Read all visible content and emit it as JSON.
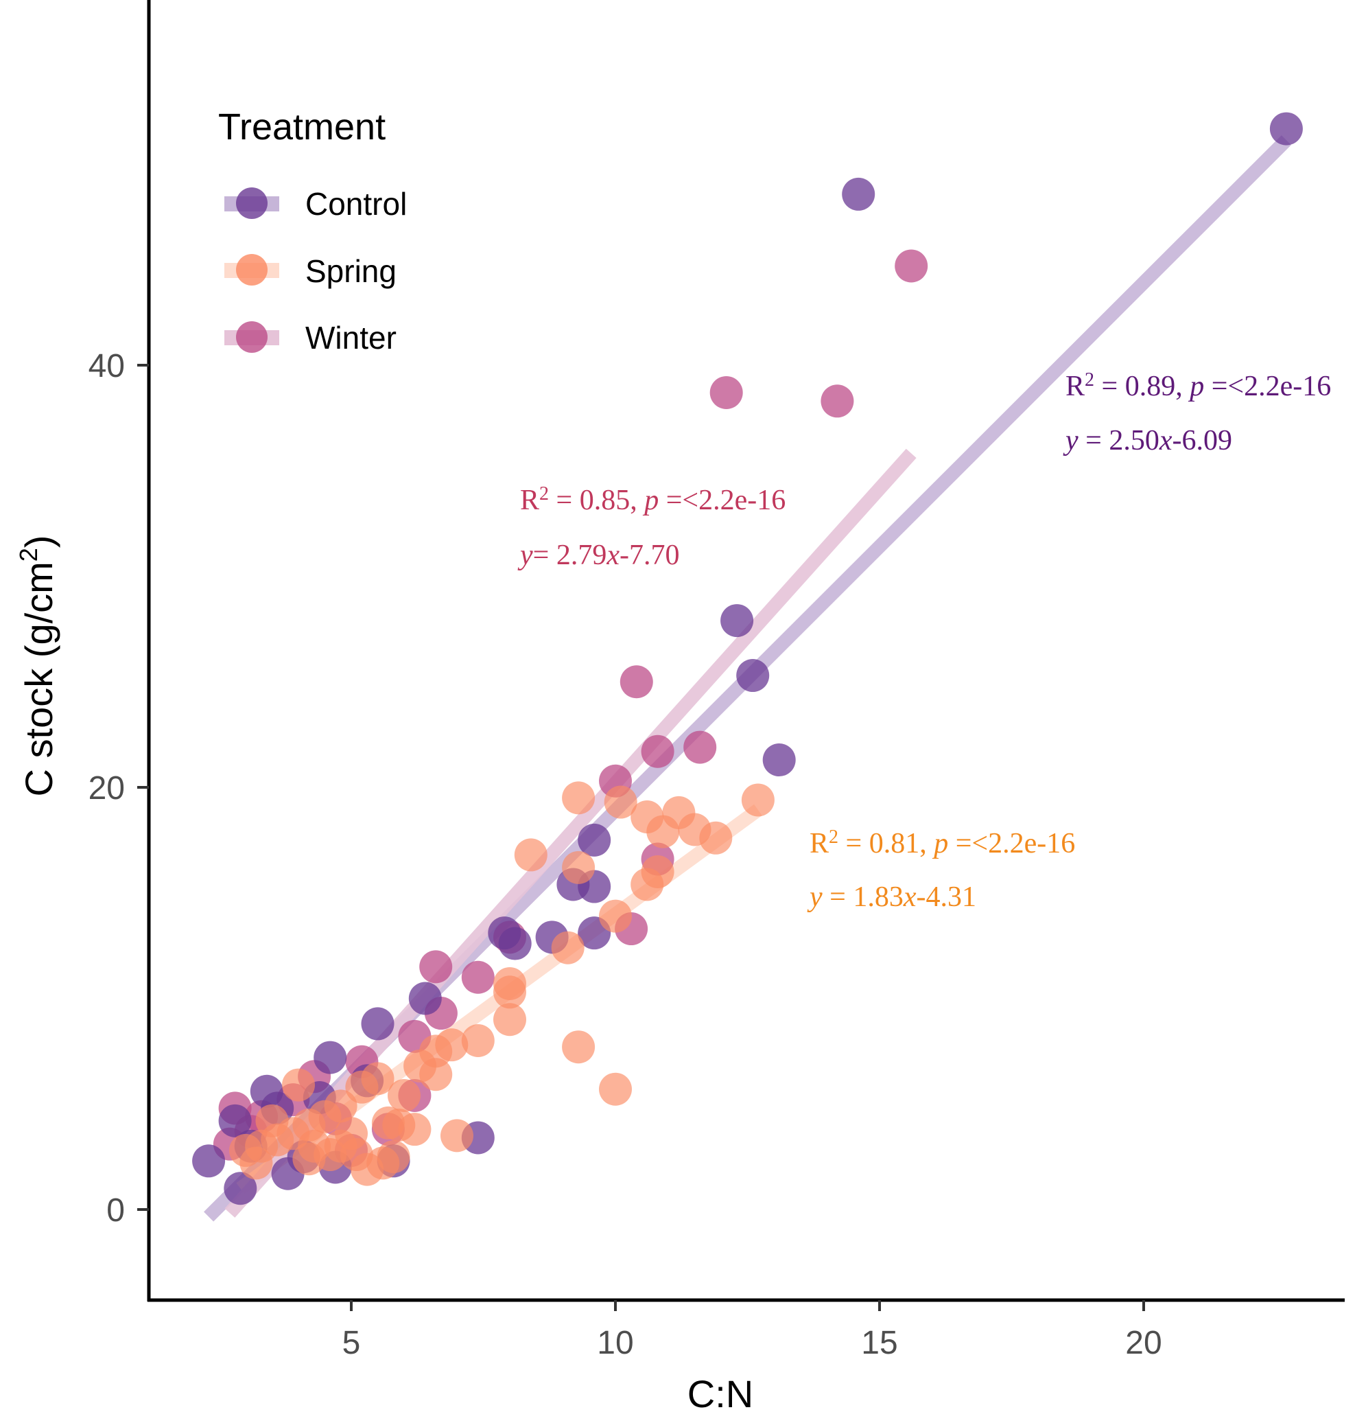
{
  "chart_data": {
    "type": "scatter",
    "title": "",
    "xlabel": "C:N",
    "ylabel": "C stock (g/cm",
    "ylabel_superscript": "2",
    "ylabel_suffix": ")",
    "xlim": [
      1.3,
      24.3
    ],
    "ylim": [
      -4.3,
      57.5
    ],
    "x_ticks": [
      5,
      10,
      15,
      20
    ],
    "y_ticks": [
      0,
      20,
      40
    ],
    "grid": false,
    "legend": {
      "title": "Treatment",
      "position": "top-left",
      "entries": [
        "Control",
        "Spring",
        "Winter"
      ]
    },
    "colors": {
      "Control": "#6a3a94",
      "Spring": "#fb8a62",
      "Winter": "#bd4e8a"
    },
    "series": [
      {
        "name": "Control",
        "fit": {
          "slope": 2.5,
          "intercept": -6.09,
          "x_range": [
            2.3,
            22.7
          ]
        },
        "annotation": {
          "r2_prefix": "R",
          "r2_sup": "2",
          "r2_text": " = 0.89, ",
          "p_label": "p",
          "p_text": " =<2.2e-16",
          "eq_y": "y",
          "eq_mid": " = 2.50",
          "eq_x": "x",
          "eq_tail": "-6.09",
          "color": "#5e1a78"
        },
        "points": [
          [
            22.7,
            51.2
          ],
          [
            14.6,
            48.1
          ],
          [
            12.3,
            27.9
          ],
          [
            12.6,
            25.3
          ],
          [
            13.1,
            21.3
          ],
          [
            9.6,
            17.5
          ],
          [
            9.2,
            15.4
          ],
          [
            9.6,
            15.3
          ],
          [
            9.6,
            13.1
          ],
          [
            8.8,
            12.9
          ],
          [
            7.9,
            13.1
          ],
          [
            8.1,
            12.6
          ],
          [
            6.4,
            10.0
          ],
          [
            5.5,
            8.8
          ],
          [
            4.6,
            7.2
          ],
          [
            7.4,
            3.4
          ],
          [
            2.3,
            2.3
          ],
          [
            2.9,
            1.0
          ],
          [
            3.4,
            5.6
          ],
          [
            2.8,
            4.2
          ],
          [
            4.7,
            2.0
          ],
          [
            3.8,
            1.7
          ],
          [
            5.3,
            6.1
          ],
          [
            4.4,
            5.3
          ],
          [
            3.1,
            3.0
          ],
          [
            5.8,
            2.3
          ],
          [
            4.1,
            2.5
          ],
          [
            3.6,
            4.8
          ]
        ]
      },
      {
        "name": "Spring",
        "fit": {
          "slope": 1.83,
          "intercept": -4.31,
          "x_range": [
            2.9,
            12.7
          ]
        },
        "annotation": {
          "r2_prefix": "R",
          "r2_sup": "2",
          "r2_text": " = 0.81, ",
          "p_label": "p",
          "p_text": " =<2.2e-16",
          "eq_y": "y",
          "eq_mid": " = 1.83",
          "eq_x": "x",
          "eq_tail": "-4.31",
          "color": "#f28a1d"
        },
        "points": [
          [
            12.7,
            19.4
          ],
          [
            11.2,
            18.8
          ],
          [
            11.5,
            18.0
          ],
          [
            11.9,
            17.6
          ],
          [
            10.6,
            18.6
          ],
          [
            10.1,
            19.3
          ],
          [
            9.3,
            19.5
          ],
          [
            10.9,
            17.9
          ],
          [
            8.4,
            16.8
          ],
          [
            9.3,
            16.2
          ],
          [
            10.8,
            16.0
          ],
          [
            10.6,
            15.4
          ],
          [
            10.0,
            13.9
          ],
          [
            9.1,
            12.4
          ],
          [
            8.0,
            10.7
          ],
          [
            8.0,
            10.3
          ],
          [
            8.0,
            9.0
          ],
          [
            7.4,
            8.0
          ],
          [
            6.9,
            7.8
          ],
          [
            6.6,
            7.5
          ],
          [
            6.6,
            6.4
          ],
          [
            6.3,
            6.8
          ],
          [
            9.3,
            7.7
          ],
          [
            10.0,
            5.7
          ],
          [
            7.0,
            3.5
          ],
          [
            6.0,
            5.4
          ],
          [
            5.7,
            4.1
          ],
          [
            5.5,
            6.2
          ],
          [
            5.2,
            5.8
          ],
          [
            4.8,
            4.9
          ],
          [
            4.5,
            4.4
          ],
          [
            4.2,
            4.0
          ],
          [
            3.9,
            3.6
          ],
          [
            3.6,
            3.3
          ],
          [
            3.3,
            3.0
          ],
          [
            3.0,
            2.8
          ],
          [
            4.3,
            3.0
          ],
          [
            4.8,
            3.0
          ],
          [
            5.1,
            2.6
          ],
          [
            5.6,
            2.2
          ],
          [
            5.8,
            2.5
          ],
          [
            5.3,
            1.9
          ],
          [
            4.6,
            2.6
          ],
          [
            4.0,
            5.9
          ],
          [
            3.5,
            4.2
          ],
          [
            5.9,
            4.0
          ],
          [
            6.2,
            3.8
          ],
          [
            5.0,
            3.6
          ],
          [
            4.2,
            2.4
          ],
          [
            3.2,
            2.2
          ]
        ]
      },
      {
        "name": "Winter",
        "fit": {
          "slope": 2.79,
          "intercept": -7.7,
          "x_range": [
            2.7,
            15.6
          ]
        },
        "annotation": {
          "r2_prefix": "R",
          "r2_sup": "2",
          "r2_text": " = 0.85, ",
          "p_label": "p",
          "p_text": " =<2.2e-16",
          "eq_y": "y",
          "eq_mid": "= 2.79",
          "eq_x": "x",
          "eq_tail": "-7.70",
          "color": "#c0385c"
        },
        "points": [
          [
            15.6,
            44.7
          ],
          [
            12.1,
            38.7
          ],
          [
            14.2,
            38.3
          ],
          [
            10.4,
            25.0
          ],
          [
            10.8,
            21.7
          ],
          [
            11.6,
            21.9
          ],
          [
            10.0,
            20.3
          ],
          [
            10.8,
            16.6
          ],
          [
            10.3,
            13.3
          ],
          [
            8.0,
            12.9
          ],
          [
            7.4,
            11.0
          ],
          [
            6.6,
            11.5
          ],
          [
            6.7,
            9.3
          ],
          [
            6.2,
            8.2
          ],
          [
            5.2,
            7.0
          ],
          [
            4.3,
            6.3
          ],
          [
            6.2,
            5.4
          ],
          [
            5.7,
            3.8
          ],
          [
            2.8,
            4.8
          ],
          [
            3.1,
            3.7
          ],
          [
            2.7,
            3.1
          ],
          [
            3.3,
            4.4
          ],
          [
            3.9,
            5.2
          ],
          [
            4.7,
            4.3
          ],
          [
            5.0,
            2.8
          ]
        ]
      }
    ]
  }
}
